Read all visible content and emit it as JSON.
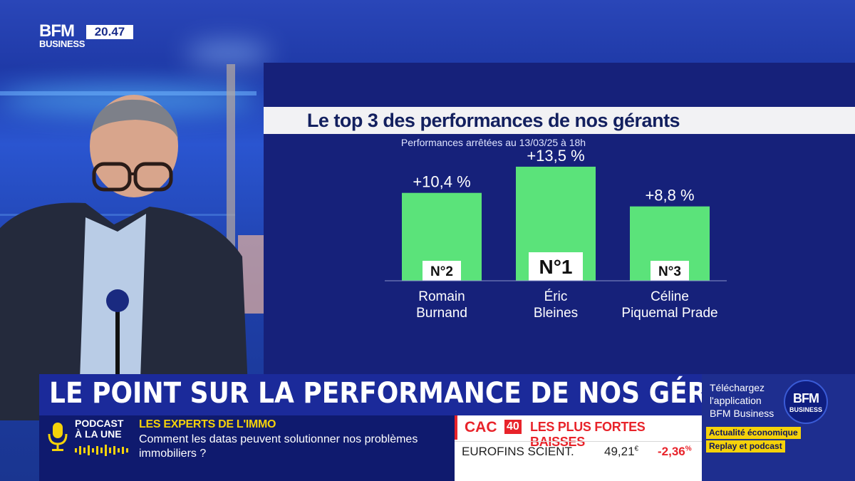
{
  "broadcast": {
    "channel_line1": "BFM",
    "channel_line2": "BUSINESS",
    "clock": "20.47"
  },
  "headline": "LE POINT SUR LA PERFORMANCE DE NOS GÉRANTS",
  "chart_data": {
    "type": "bar",
    "title": "Le top 3 des performances de nos gérants",
    "subtitle": "Performances arrêtées au 13/03/25 à 18h",
    "unit": "%",
    "categories": [
      "Romain Burnand",
      "Éric Bleines",
      "Céline Piquemal Prade"
    ],
    "category_lines": [
      [
        "Romain",
        "Burnand"
      ],
      [
        "Éric",
        "Bleines"
      ],
      [
        "Céline",
        "Piquemal Prade"
      ]
    ],
    "values": [
      10.4,
      13.5,
      8.8
    ],
    "value_labels": [
      "+10,4 %",
      "+13,5 %",
      "+8,8 %"
    ],
    "rank_labels": [
      "N°2",
      "N°1",
      "N°3"
    ],
    "ylim": [
      0,
      14
    ],
    "bar_color": "#5be37a",
    "xlabel": "",
    "ylabel": ""
  },
  "ticker": {
    "podcast_label_line1": "PODCAST",
    "podcast_label_line2": "À LA UNE",
    "rubric": "LES EXPERTS DE L'IMMO",
    "text": "Comment les datas peuvent solutionner nos problèmes immobiliers ?"
  },
  "market": {
    "index_label": "CAC",
    "index_number": "40",
    "title": "LES PLUS FORTES BAISSES",
    "row": {
      "name": "EUROFINS SCIENT.",
      "price": "49,21",
      "currency": "€",
      "change": "-2,36",
      "change_unit": "%"
    }
  },
  "promo": {
    "line1": "Téléchargez",
    "line2": "l'application",
    "line3": "BFM Business",
    "tag1": "Actualité économique",
    "tag2": "Replay et podcast",
    "logo_line1": "BFM",
    "logo_line2": "BUSINESS"
  },
  "colors": {
    "accent_red": "#e8232a",
    "accent_yellow": "#f5d20a",
    "panel_blue": "#16217a"
  }
}
